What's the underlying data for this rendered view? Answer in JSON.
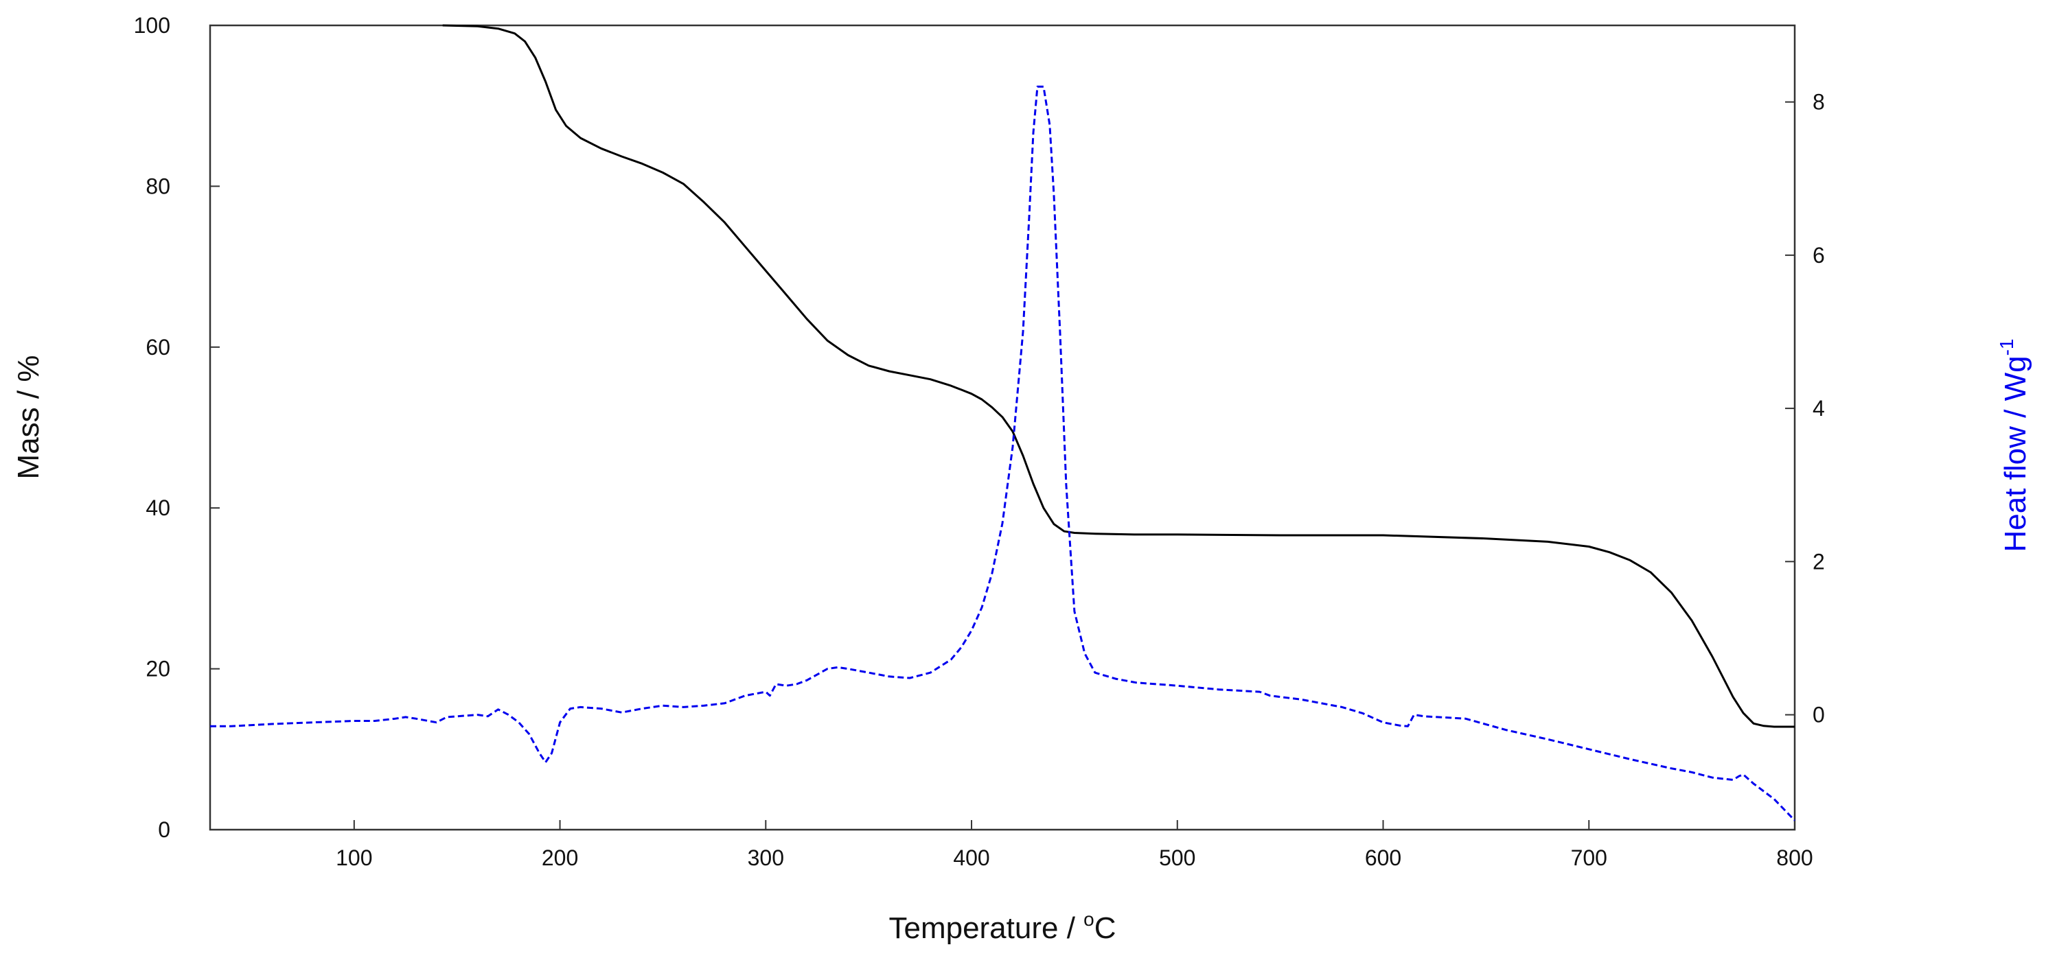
{
  "chart_data": {
    "type": "line",
    "title": "",
    "xlabel": "Temperature / ",
    "xlabel_unit_sup": "o",
    "xlabel_unit": "C",
    "ylabel_left": "Mass / %",
    "ylabel_right": "Heat flow / Wg",
    "ylabel_right_sup": "-1",
    "xlim": [
      30,
      800
    ],
    "ylim_left": [
      0,
      100
    ],
    "ylim_right": [
      -1.5,
      9.0
    ],
    "x_ticks": [
      100,
      200,
      300,
      400,
      500,
      600,
      700,
      800
    ],
    "y_left_ticks": [
      0,
      20,
      40,
      60,
      80,
      100
    ],
    "y_right_ticks": [
      0,
      2,
      4,
      6,
      8
    ],
    "grid": false,
    "colors": {
      "mass": "#000000",
      "heat_flow": "#0000ee",
      "axes": "#333333"
    },
    "series": [
      {
        "axis": "left",
        "style": "solid",
        "x": [
          143,
          160,
          170,
          178,
          183,
          188,
          193,
          198,
          203,
          210,
          220,
          230,
          240,
          250,
          260,
          270,
          280,
          290,
          300,
          310,
          320,
          330,
          340,
          350,
          360,
          370,
          380,
          390,
          395,
          400,
          405,
          410,
          415,
          420,
          425,
          430,
          435,
          440,
          445,
          450,
          460,
          480,
          500,
          550,
          600,
          650,
          680,
          700,
          710,
          720,
          730,
          740,
          750,
          760,
          770,
          775,
          780,
          785,
          790,
          800
        ],
        "y": [
          100,
          99.9,
          99.6,
          99,
          98,
          96,
          93,
          89.5,
          87.5,
          86,
          84.7,
          83.7,
          82.8,
          81.7,
          80.3,
          78,
          75.5,
          72.5,
          69.5,
          66.5,
          63.5,
          60.8,
          59,
          57.7,
          57,
          56.5,
          56,
          55.2,
          54.7,
          54.2,
          53.5,
          52.5,
          51.3,
          49.5,
          46.5,
          43,
          40,
          38,
          37.1,
          36.9,
          36.8,
          36.7,
          36.7,
          36.6,
          36.6,
          36.2,
          35.8,
          35.2,
          34.5,
          33.5,
          32,
          29.5,
          26,
          21.5,
          16.5,
          14.5,
          13.2,
          12.9,
          12.8,
          12.8
        ]
      },
      {
        "axis": "right",
        "style": "dashed",
        "x": [
          30,
          40,
          60,
          80,
          100,
          110,
          120,
          125,
          130,
          140,
          145,
          150,
          160,
          165,
          170,
          175,
          180,
          185,
          190,
          193,
          196,
          200,
          205,
          210,
          220,
          230,
          240,
          250,
          260,
          270,
          280,
          290,
          300,
          302,
          305,
          310,
          315,
          320,
          330,
          335,
          340,
          350,
          360,
          370,
          380,
          390,
          395,
          400,
          405,
          410,
          415,
          420,
          425,
          428,
          430,
          432,
          435,
          438,
          440,
          443,
          446,
          450,
          455,
          460,
          470,
          480,
          500,
          520,
          540,
          545,
          560,
          580,
          590,
          600,
          608,
          612,
          615,
          620,
          640,
          660,
          680,
          700,
          720,
          740,
          750,
          760,
          770,
          773,
          775,
          780,
          790,
          800
        ],
        "y": [
          -0.15,
          -0.15,
          -0.12,
          -0.1,
          -0.08,
          -0.08,
          -0.05,
          -0.03,
          -0.05,
          -0.1,
          -0.03,
          -0.02,
          0.0,
          -0.02,
          0.07,
          0.0,
          -0.1,
          -0.25,
          -0.5,
          -0.62,
          -0.5,
          -0.1,
          0.08,
          0.1,
          0.08,
          0.03,
          0.08,
          0.12,
          0.1,
          0.12,
          0.15,
          0.25,
          0.3,
          0.25,
          0.4,
          0.38,
          0.4,
          0.45,
          0.6,
          0.62,
          0.6,
          0.55,
          0.5,
          0.48,
          0.55,
          0.72,
          0.88,
          1.1,
          1.4,
          1.85,
          2.5,
          3.5,
          5.0,
          6.5,
          7.6,
          8.2,
          8.2,
          7.7,
          6.8,
          5.0,
          3.0,
          1.35,
          0.8,
          0.55,
          0.47,
          0.42,
          0.38,
          0.33,
          0.3,
          0.25,
          0.2,
          0.1,
          0.02,
          -0.1,
          -0.14,
          -0.15,
          0.0,
          -0.02,
          -0.05,
          -0.2,
          -0.32,
          -0.45,
          -0.58,
          -0.7,
          -0.75,
          -0.82,
          -0.85,
          -0.8,
          -0.78,
          -0.9,
          -1.1,
          -1.38
        ]
      }
    ]
  }
}
